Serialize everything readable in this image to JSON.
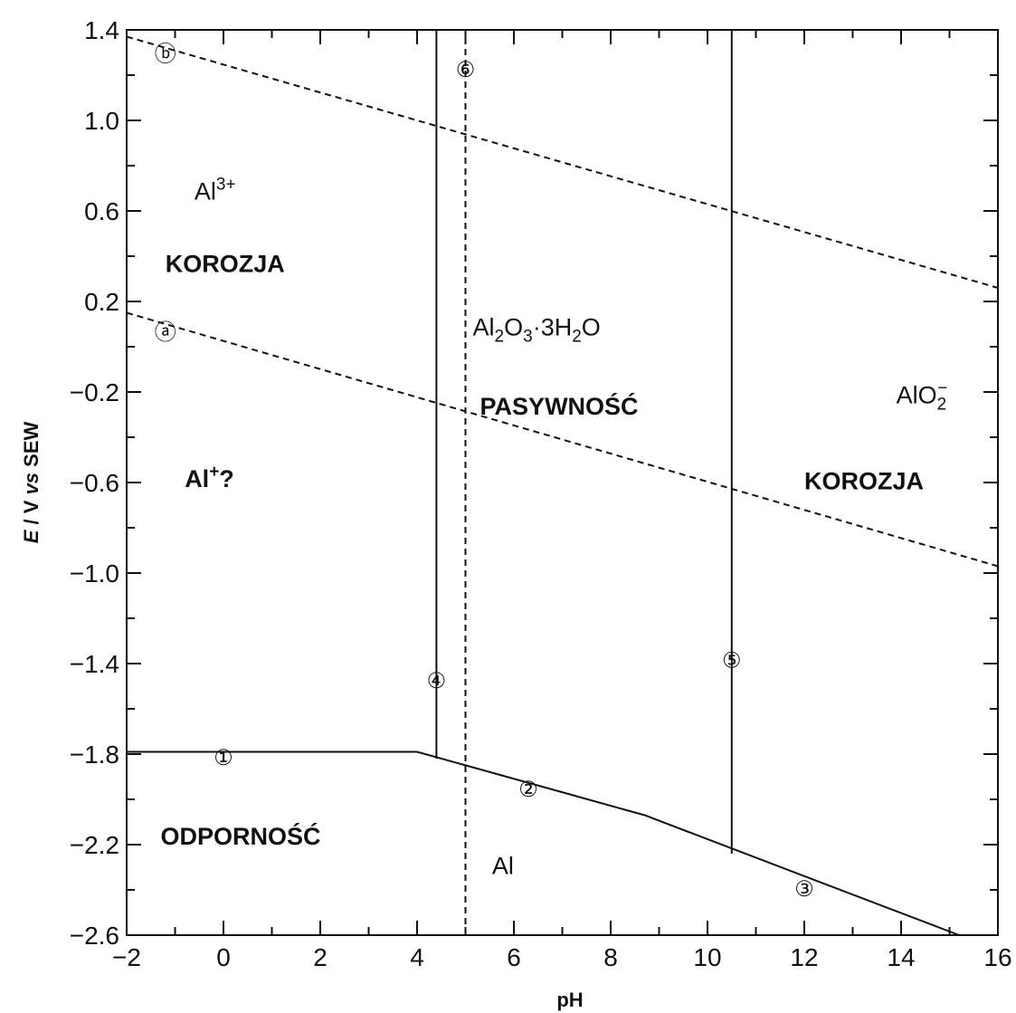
{
  "chart_data": {
    "type": "line",
    "title": "",
    "xlabel": "pH",
    "ylabel": "E / V vs SEW",
    "xlim": [
      -2,
      16
    ],
    "ylim": [
      -2.6,
      1.4
    ],
    "xticks": [
      -2,
      0,
      2,
      4,
      6,
      8,
      10,
      12,
      14,
      16
    ],
    "yticks": [
      1.4,
      1.0,
      0.6,
      0.2,
      -0.2,
      -0.6,
      -1.0,
      -1.4,
      -1.8,
      -2.2,
      -2.6
    ],
    "xtick_labels": [
      "−2",
      "0",
      "2",
      "4",
      "6",
      "8",
      "10",
      "12",
      "14",
      "16"
    ],
    "ytick_labels": [
      "1.4",
      "1.0",
      "0.6",
      "0.2",
      "−0.2",
      "−0.6",
      "−1.0",
      "−1.4",
      "−1.8",
      "−2.2",
      "−2.6"
    ],
    "grid": false,
    "series": [
      {
        "style": "solid",
        "color": "#111111",
        "points": [
          [
            -2,
            -1.79
          ],
          [
            4.0,
            -1.79
          ],
          [
            8.7,
            -2.07
          ],
          [
            15.2,
            -2.6
          ]
        ]
      },
      {
        "style": "solid",
        "color": "#111111",
        "points": [
          [
            4.4,
            -1.82
          ],
          [
            4.4,
            1.4
          ]
        ]
      },
      {
        "style": "solid",
        "color": "#111111",
        "points": [
          [
            10.5,
            -2.24
          ],
          [
            10.5,
            1.4
          ]
        ]
      },
      {
        "style": "dashed",
        "color": "#111111",
        "points": [
          [
            5.0,
            -2.6
          ],
          [
            5.0,
            1.4
          ]
        ]
      },
      {
        "style": "dashed",
        "color": "#111111",
        "points": [
          [
            -2,
            0.15
          ],
          [
            16,
            -0.97
          ]
        ]
      },
      {
        "style": "dashed",
        "color": "#111111",
        "points": [
          [
            -2,
            1.37
          ],
          [
            16,
            0.26
          ]
        ]
      }
    ],
    "markers": [
      {
        "label": "①",
        "x": 0.0,
        "y": -1.8
      },
      {
        "label": "②",
        "x": 6.3,
        "y": -1.94
      },
      {
        "label": "③",
        "x": 12.0,
        "y": -2.38
      },
      {
        "label": "④",
        "x": 4.4,
        "y": -1.46
      },
      {
        "label": "⑤",
        "x": 10.5,
        "y": -1.37
      },
      {
        "label": "⑥",
        "x": 5.0,
        "y": 1.24
      },
      {
        "label": "ⓐ",
        "x": -1.2,
        "y": 0.08
      },
      {
        "label": "ⓑ",
        "x": -1.2,
        "y": 1.31
      }
    ],
    "annotations": [
      {
        "id": "al3",
        "base": "Al",
        "sup": "3+",
        "x": -0.6,
        "y": 0.65,
        "weight": "normal"
      },
      {
        "id": "korozja-left",
        "text": "KOROZJA",
        "x": -1.2,
        "y": 0.33,
        "weight": "bold"
      },
      {
        "id": "al-plus",
        "base": "Al",
        "sup": "+",
        "tail": "?",
        "x": -0.8,
        "y": -0.62,
        "weight": "bold"
      },
      {
        "id": "odpornosc",
        "text": "ODPORNOŚĆ",
        "x": -1.3,
        "y": -2.2,
        "weight": "bold"
      },
      {
        "id": "al2o3",
        "parts": [
          {
            "t": "Al"
          },
          {
            "t": "2",
            "sub": true
          },
          {
            "t": "O"
          },
          {
            "t": "3",
            "sub": true
          },
          {
            "t": "·3H"
          },
          {
            "t": "2",
            "sub": true
          },
          {
            "t": "O"
          }
        ],
        "x": 5.15,
        "y": 0.05,
        "weight": "normal"
      },
      {
        "id": "pasywnosc",
        "text": "PASYWNOŚĆ",
        "x": 5.3,
        "y": -0.3,
        "weight": "bold"
      },
      {
        "id": "al-metal",
        "text": "Al",
        "x": 5.55,
        "y": -2.33,
        "weight": "normal"
      },
      {
        "id": "alo2",
        "base": "AlO",
        "sub": "2",
        "sup": "−",
        "x": 13.9,
        "y": -0.25,
        "weight": "normal"
      },
      {
        "id": "korozja-right",
        "text": "KOROZJA",
        "x": 12.0,
        "y": -0.63,
        "weight": "bold"
      }
    ]
  }
}
